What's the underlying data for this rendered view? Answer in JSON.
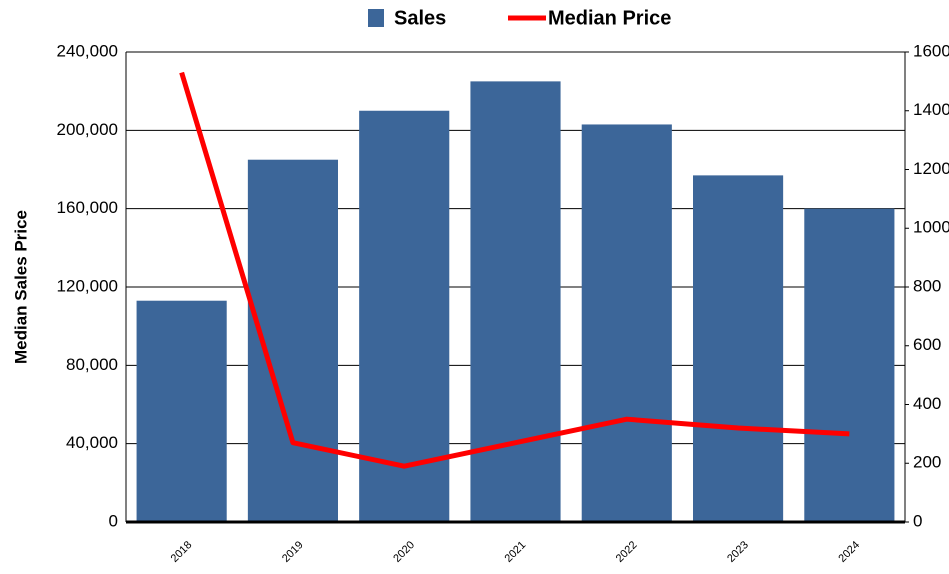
{
  "chart_data": {
    "type": "bar",
    "y_label": "Median Sales Price",
    "categories": [
      "2018",
      "2019",
      "2020",
      "2021",
      "2022",
      "2023",
      "2024"
    ],
    "series": [
      {
        "name": "Sales",
        "type": "bar",
        "color": "#3c6699",
        "axis": "y",
        "values": [
          113000,
          185000,
          210000,
          225000,
          203000,
          177000,
          160000
        ]
      },
      {
        "name": "Median Price",
        "type": "line",
        "color": "#ff0000",
        "axis": "y2",
        "values": [
          1530,
          270,
          190,
          270,
          350,
          320,
          300
        ]
      }
    ],
    "ylim": [
      0,
      240000
    ],
    "yticks": [
      0,
      {
        "value": 40000,
        "label": "40,000"
      },
      {
        "value": 80000,
        "label": "80,000"
      },
      {
        "value": 120000,
        "label": "120,000"
      },
      {
        "value": 160000,
        "label": "160,000"
      },
      {
        "value": 200000,
        "label": "200,000"
      },
      {
        "value": 240000,
        "label": "240,000"
      }
    ],
    "y2lim": [
      0,
      1600
    ],
    "y2ticks": [
      0,
      200,
      400,
      600,
      800,
      1000,
      1200,
      1400,
      1600
    ],
    "grid": true,
    "legend": "top"
  }
}
